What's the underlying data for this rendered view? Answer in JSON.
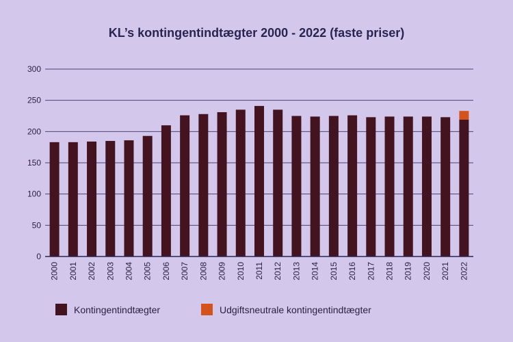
{
  "chart_data": {
    "type": "bar",
    "stacked": true,
    "title": "KL’s kontingentindtægter 2000 - 2022 (faste priser)",
    "xlabel": "",
    "ylabel": "",
    "ylim": [
      0,
      300
    ],
    "yticks": [
      0,
      50,
      100,
      150,
      200,
      250,
      300
    ],
    "grid": true,
    "legend_position": "bottom",
    "categories": [
      "2000",
      "2001",
      "2002",
      "2003",
      "2004",
      "2005",
      "2006",
      "2007",
      "2008",
      "2009",
      "2010",
      "2011",
      "2012",
      "2013",
      "2014",
      "2015",
      "2016",
      "2017",
      "2018",
      "2019",
      "2020",
      "2021",
      "2022"
    ],
    "series": [
      {
        "name": "Kontingentindtægter",
        "color": "#43141f",
        "values": [
          183,
          183,
          184,
          185,
          186,
          193,
          210,
          226,
          228,
          231,
          235,
          241,
          235,
          225,
          224,
          225,
          226,
          223,
          224,
          224,
          224,
          223,
          219
        ]
      },
      {
        "name": "Udgiftsneutrale kontingentindtægter",
        "color": "#d4521c",
        "values": [
          0,
          0,
          0,
          0,
          0,
          0,
          0,
          0,
          0,
          0,
          0,
          0,
          0,
          0,
          0,
          0,
          0,
          0,
          0,
          0,
          0,
          0,
          14
        ]
      }
    ]
  }
}
